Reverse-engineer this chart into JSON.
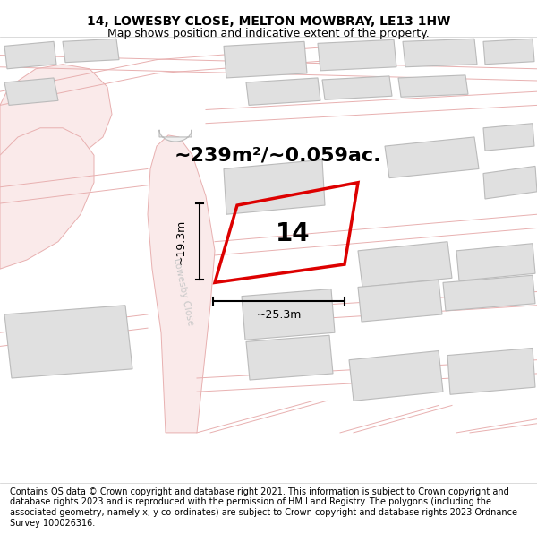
{
  "title_line1": "14, LOWESBY CLOSE, MELTON MOWBRAY, LE13 1HW",
  "title_line2": "Map shows position and indicative extent of the property.",
  "area_label": "~239m²/~0.059ac.",
  "house_number": "14",
  "dim_horizontal": "~25.3m",
  "dim_vertical": "~19.3m",
  "street_label": "Lowesby Close",
  "footer_text": "Contains OS data © Crown copyright and database right 2021. This information is subject to Crown copyright and database rights 2023 and is reproduced with the permission of HM Land Registry. The polygons (including the associated geometry, namely x, y co-ordinates) are subject to Crown copyright and database rights 2023 Ordnance Survey 100026316.",
  "bg_color": "#ffffff",
  "map_bg": "#ffffff",
  "plot_red": "#dd0000",
  "building_fill": "#e0e0e0",
  "building_edge": "#bbbbbb",
  "road_fill": "#faeaea",
  "road_edge": "#e8b0b0",
  "street_label_color": "#c8c8c8",
  "title_fontsize": 10,
  "subtitle_fontsize": 9,
  "area_fontsize": 16,
  "num_fontsize": 20,
  "dim_fontsize": 9,
  "footer_fontsize": 7
}
